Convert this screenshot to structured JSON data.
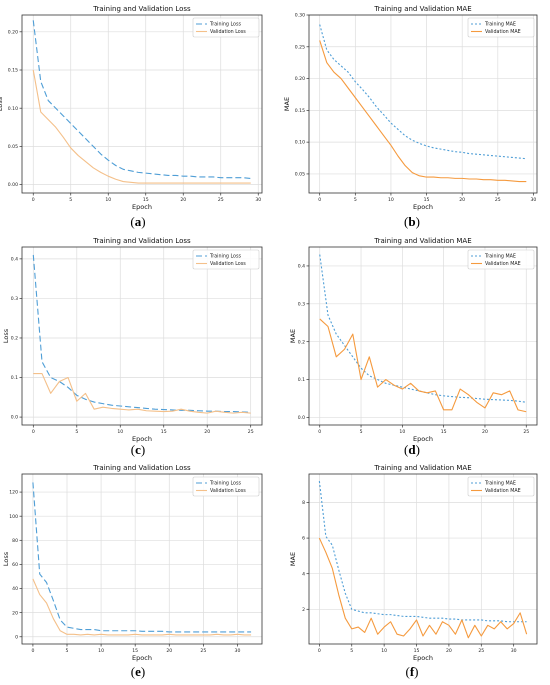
{
  "captions": [
    "(a)",
    "(b)",
    "(c)",
    "(d)",
    "(e)",
    "(f)"
  ],
  "chart_data": [
    {
      "type": "line",
      "title": "Training and Validation Loss",
      "xlabel": "Epoch",
      "ylabel": "Loss",
      "xlim": [
        -1.5,
        30.5
      ],
      "ylim": [
        -0.011,
        0.222
      ],
      "xticks": [
        0,
        5,
        10,
        15,
        20,
        25,
        30
      ],
      "yticks": [
        0.0,
        0.05,
        0.1,
        0.15,
        0.2
      ],
      "ytick_decimals": 2,
      "grid": true,
      "legend": "top-right",
      "series": [
        {
          "name": "Training Loss",
          "color": "#4f9ed6",
          "dash": "6,3",
          "x": [
            0,
            1,
            2,
            3,
            4,
            5,
            6,
            7,
            8,
            9,
            10,
            11,
            12,
            13,
            14,
            15,
            16,
            17,
            18,
            19,
            20,
            21,
            22,
            23,
            24,
            25,
            26,
            27,
            28,
            29
          ],
          "y": [
            0.215,
            0.135,
            0.11,
            0.1,
            0.09,
            0.08,
            0.07,
            0.06,
            0.05,
            0.04,
            0.032,
            0.025,
            0.02,
            0.018,
            0.016,
            0.015,
            0.014,
            0.013,
            0.012,
            0.012,
            0.011,
            0.011,
            0.01,
            0.01,
            0.01,
            0.009,
            0.009,
            0.009,
            0.009,
            0.008
          ]
        },
        {
          "name": "Validation Loss",
          "color": "#f4c08a",
          "dash": "",
          "x": [
            0,
            1,
            2,
            3,
            4,
            5,
            6,
            7,
            8,
            9,
            10,
            11,
            12,
            13,
            14,
            15,
            16,
            17,
            18,
            19,
            20,
            21,
            22,
            23,
            24,
            25,
            26,
            27,
            28,
            29
          ],
          "y": [
            0.15,
            0.095,
            0.085,
            0.075,
            0.062,
            0.048,
            0.038,
            0.03,
            0.022,
            0.016,
            0.011,
            0.007,
            0.004,
            0.003,
            0.002,
            0.002,
            0.002,
            0.002,
            0.002,
            0.002,
            0.002,
            0.002,
            0.002,
            0.002,
            0.002,
            0.002,
            0.002,
            0.002,
            0.002,
            0.002
          ]
        }
      ]
    },
    {
      "type": "line",
      "title": "Training and Validation MAE",
      "xlabel": "Epoch",
      "ylabel": "MAE",
      "xlim": [
        -1.5,
        30.5
      ],
      "ylim": [
        0.02,
        0.3
      ],
      "xticks": [
        0,
        5,
        10,
        15,
        20,
        25,
        30
      ],
      "yticks": [
        0.05,
        0.1,
        0.15,
        0.2,
        0.25,
        0.3
      ],
      "ytick_decimals": 2,
      "grid": true,
      "legend": "top-right",
      "series": [
        {
          "name": "Training MAE",
          "color": "#4f9ed6",
          "dash": "2,2",
          "x": [
            0,
            1,
            2,
            3,
            4,
            5,
            6,
            7,
            8,
            9,
            10,
            11,
            12,
            13,
            14,
            15,
            16,
            17,
            18,
            19,
            20,
            21,
            22,
            23,
            24,
            25,
            26,
            27,
            28,
            29
          ],
          "y": [
            0.285,
            0.245,
            0.23,
            0.22,
            0.21,
            0.195,
            0.183,
            0.17,
            0.155,
            0.143,
            0.13,
            0.12,
            0.11,
            0.103,
            0.098,
            0.094,
            0.091,
            0.089,
            0.087,
            0.085,
            0.084,
            0.082,
            0.081,
            0.08,
            0.079,
            0.078,
            0.077,
            0.076,
            0.075,
            0.074
          ]
        },
        {
          "name": "Validation MAE",
          "color": "#f59a3e",
          "dash": "",
          "x": [
            0,
            1,
            2,
            3,
            4,
            5,
            6,
            7,
            8,
            9,
            10,
            11,
            12,
            13,
            14,
            15,
            16,
            17,
            18,
            19,
            20,
            21,
            22,
            23,
            24,
            25,
            26,
            27,
            28,
            29
          ],
          "y": [
            0.26,
            0.225,
            0.21,
            0.2,
            0.185,
            0.17,
            0.155,
            0.14,
            0.125,
            0.11,
            0.095,
            0.078,
            0.063,
            0.052,
            0.047,
            0.045,
            0.045,
            0.044,
            0.044,
            0.043,
            0.043,
            0.042,
            0.042,
            0.041,
            0.041,
            0.04,
            0.04,
            0.039,
            0.038,
            0.038
          ]
        }
      ]
    },
    {
      "type": "line",
      "title": "Training and Validation Loss",
      "xlabel": "Epoch",
      "ylabel": "Loss",
      "xlim": [
        -1.3,
        26.3
      ],
      "ylim": [
        -0.02,
        0.43
      ],
      "xticks": [
        0,
        5,
        10,
        15,
        20,
        25
      ],
      "yticks": [
        0.0,
        0.1,
        0.2,
        0.3,
        0.4
      ],
      "ytick_decimals": 1,
      "grid": true,
      "legend": "top-right",
      "series": [
        {
          "name": "Training Loss",
          "color": "#4f9ed6",
          "dash": "6,3",
          "x": [
            0,
            1,
            2,
            3,
            4,
            5,
            6,
            7,
            8,
            9,
            10,
            11,
            12,
            13,
            14,
            15,
            16,
            17,
            18,
            19,
            20,
            21,
            22,
            23,
            24,
            25
          ],
          "y": [
            0.41,
            0.14,
            0.1,
            0.09,
            0.075,
            0.055,
            0.045,
            0.038,
            0.034,
            0.03,
            0.028,
            0.026,
            0.024,
            0.022,
            0.02,
            0.019,
            0.018,
            0.017,
            0.017,
            0.016,
            0.015,
            0.015,
            0.014,
            0.014,
            0.013,
            0.012
          ]
        },
        {
          "name": "Validation Loss",
          "color": "#f4c08a",
          "dash": "",
          "x": [
            0,
            1,
            2,
            3,
            4,
            5,
            6,
            7,
            8,
            9,
            10,
            11,
            12,
            13,
            14,
            15,
            16,
            17,
            18,
            19,
            20,
            21,
            22,
            23,
            24,
            25
          ],
          "y": [
            0.11,
            0.11,
            0.06,
            0.09,
            0.1,
            0.04,
            0.06,
            0.02,
            0.025,
            0.022,
            0.02,
            0.018,
            0.02,
            0.016,
            0.015,
            0.014,
            0.015,
            0.02,
            0.015,
            0.012,
            0.01,
            0.015,
            0.012,
            0.01,
            0.012,
            0.01
          ]
        }
      ]
    },
    {
      "type": "line",
      "title": "Training and Validation MAE",
      "xlabel": "Epoch",
      "ylabel": "MAE",
      "xlim": [
        -1.3,
        26.3
      ],
      "ylim": [
        -0.02,
        0.45
      ],
      "xticks": [
        0,
        5,
        10,
        15,
        20,
        25
      ],
      "yticks": [
        0.0,
        0.1,
        0.2,
        0.3,
        0.4
      ],
      "ytick_decimals": 1,
      "grid": true,
      "legend": "top-right",
      "series": [
        {
          "name": "Training MAE",
          "color": "#4f9ed6",
          "dash": "2,2",
          "x": [
            0,
            1,
            2,
            3,
            4,
            5,
            6,
            7,
            8,
            9,
            10,
            11,
            12,
            13,
            14,
            15,
            16,
            17,
            18,
            19,
            20,
            21,
            22,
            23,
            24,
            25
          ],
          "y": [
            0.43,
            0.27,
            0.22,
            0.19,
            0.16,
            0.13,
            0.11,
            0.1,
            0.09,
            0.085,
            0.08,
            0.075,
            0.07,
            0.065,
            0.06,
            0.057,
            0.055,
            0.053,
            0.052,
            0.05,
            0.048,
            0.047,
            0.046,
            0.045,
            0.043,
            0.04
          ]
        },
        {
          "name": "Validation MAE",
          "color": "#f59a3e",
          "dash": "",
          "x": [
            0,
            1,
            2,
            3,
            4,
            5,
            6,
            7,
            8,
            9,
            10,
            11,
            12,
            13,
            14,
            15,
            16,
            17,
            18,
            19,
            20,
            21,
            22,
            23,
            24,
            25
          ],
          "y": [
            0.26,
            0.24,
            0.16,
            0.18,
            0.22,
            0.1,
            0.16,
            0.08,
            0.1,
            0.085,
            0.075,
            0.09,
            0.07,
            0.065,
            0.07,
            0.02,
            0.02,
            0.075,
            0.06,
            0.04,
            0.025,
            0.065,
            0.06,
            0.07,
            0.02,
            0.015
          ]
        }
      ]
    },
    {
      "type": "line",
      "title": "Training and Validation Loss",
      "xlabel": "Epoch",
      "ylabel": "Loss",
      "xlim": [
        -1.6,
        33.6
      ],
      "ylim": [
        -6,
        135
      ],
      "xticks": [
        0,
        5,
        10,
        15,
        20,
        25,
        30
      ],
      "yticks": [
        0,
        20,
        40,
        60,
        80,
        100,
        120
      ],
      "ytick_decimals": 0,
      "grid": true,
      "legend": "top-right",
      "series": [
        {
          "name": "Training Loss",
          "color": "#4f9ed6",
          "dash": "6,3",
          "x": [
            0,
            1,
            2,
            3,
            4,
            5,
            6,
            7,
            8,
            9,
            10,
            11,
            12,
            13,
            14,
            15,
            16,
            17,
            18,
            19,
            20,
            21,
            22,
            23,
            24,
            25,
            26,
            27,
            28,
            29,
            30,
            31,
            32
          ],
          "y": [
            128,
            52,
            45,
            30,
            14,
            8,
            7,
            6,
            6,
            6,
            5,
            5,
            5,
            5,
            5,
            5,
            4.5,
            4.5,
            4.5,
            4.5,
            4,
            4,
            4,
            4,
            4,
            4,
            4,
            4,
            4,
            4,
            4,
            4,
            4
          ]
        },
        {
          "name": "Validation Loss",
          "color": "#f4c08a",
          "dash": "",
          "x": [
            0,
            1,
            2,
            3,
            4,
            5,
            6,
            7,
            8,
            9,
            10,
            11,
            12,
            13,
            14,
            15,
            16,
            17,
            18,
            19,
            20,
            21,
            22,
            23,
            24,
            25,
            26,
            27,
            28,
            29,
            30,
            31,
            32
          ],
          "y": [
            48,
            35,
            28,
            15,
            5,
            2,
            2,
            1.5,
            2,
            1.5,
            2,
            1.5,
            1.5,
            1.5,
            1.5,
            2,
            1.5,
            1.5,
            1.5,
            1.5,
            2,
            1.5,
            1.5,
            1.5,
            1.5,
            1.5,
            1.5,
            2,
            1.5,
            1.5,
            2,
            1.5,
            1.5
          ]
        }
      ]
    },
    {
      "type": "line",
      "title": "Training and Validation MAE",
      "xlabel": "Epoch",
      "ylabel": "MAE",
      "xlim": [
        -1.6,
        33.6
      ],
      "ylim": [
        0.05,
        9.6
      ],
      "xticks": [
        0,
        5,
        10,
        15,
        20,
        25,
        30
      ],
      "yticks": [
        2,
        4,
        6,
        8
      ],
      "ytick_decimals": 0,
      "grid": true,
      "legend": "top-right",
      "series": [
        {
          "name": "Training MAE",
          "color": "#4f9ed6",
          "dash": "2,2",
          "x": [
            0,
            1,
            2,
            3,
            4,
            5,
            6,
            7,
            8,
            9,
            10,
            11,
            12,
            13,
            14,
            15,
            16,
            17,
            18,
            19,
            20,
            21,
            22,
            23,
            24,
            25,
            26,
            27,
            28,
            29,
            30,
            31,
            32
          ],
          "y": [
            9.2,
            6.1,
            5.6,
            4.2,
            2.9,
            2.0,
            1.9,
            1.8,
            1.8,
            1.75,
            1.7,
            1.7,
            1.65,
            1.6,
            1.6,
            1.6,
            1.55,
            1.5,
            1.5,
            1.5,
            1.45,
            1.45,
            1.4,
            1.4,
            1.4,
            1.4,
            1.35,
            1.35,
            1.35,
            1.3,
            1.3,
            1.3,
            1.3
          ]
        },
        {
          "name": "Validation MAE",
          "color": "#f59a3e",
          "dash": "",
          "x": [
            0,
            1,
            2,
            3,
            4,
            5,
            6,
            7,
            8,
            9,
            10,
            11,
            12,
            13,
            14,
            15,
            16,
            17,
            18,
            19,
            20,
            21,
            22,
            23,
            24,
            25,
            26,
            27,
            28,
            29,
            30,
            31,
            32
          ],
          "y": [
            6.0,
            5.2,
            4.3,
            2.8,
            1.5,
            0.9,
            1.0,
            0.7,
            1.5,
            0.6,
            1.0,
            1.3,
            0.6,
            0.5,
            0.9,
            1.4,
            0.5,
            1.1,
            0.6,
            1.3,
            1.1,
            0.6,
            1.4,
            0.4,
            1.1,
            0.5,
            1.1,
            0.9,
            1.3,
            0.9,
            1.2,
            1.8,
            0.6
          ]
        }
      ]
    }
  ]
}
